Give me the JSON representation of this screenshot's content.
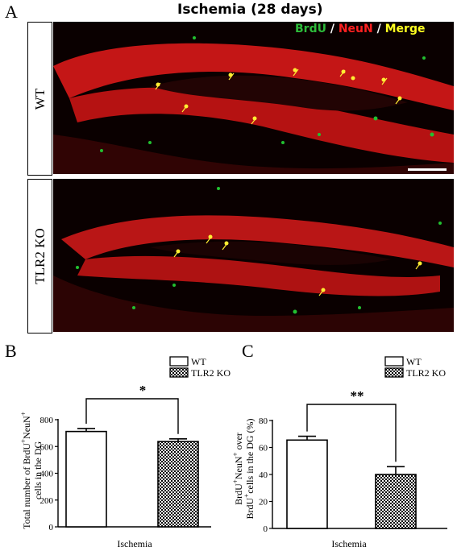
{
  "panel_a": {
    "letter": "A",
    "title": "Ischemia (28 days)",
    "legend": {
      "brdu": "BrdU",
      "sep1": "/",
      "neun": "NeuN",
      "sep2": "/",
      "merge": "Merge"
    },
    "colors": {
      "brdu": "#2dbb3a",
      "neun": "#ff2020",
      "merge": "#ffff20",
      "sep": "#ffffff"
    },
    "rows": [
      {
        "label": "WT"
      },
      {
        "label": "TLR2 KO"
      }
    ]
  },
  "legend": {
    "wt": "WT",
    "ko": "TLR2 KO"
  },
  "chart_data": [
    {
      "panel": "B",
      "type": "bar",
      "categories": [
        "WT",
        "TLR2 KO"
      ],
      "values": [
        712,
        637
      ],
      "errors": [
        22,
        20
      ],
      "ylabel_line1": "Total number of BrdU",
      "ylabel_sup1": "+",
      "ylabel_mid": "NeuN",
      "ylabel_sup2": "+",
      "ylabel_line2": "cells in the DG",
      "xlabel": "Ischemia",
      "ylim": [
        0,
        800
      ],
      "yticks": [
        "0",
        "200",
        "400",
        "600",
        "800"
      ],
      "significance": "*",
      "legend": [
        "WT",
        "TLR2 KO"
      ]
    },
    {
      "panel": "C",
      "type": "bar",
      "categories": [
        "WT",
        "TLR2 KO"
      ],
      "values": [
        65.5,
        40
      ],
      "errors": [
        2.8,
        5.8
      ],
      "ylabel_line1": "BrdU",
      "ylabel_sup1": "+",
      "ylabel_mid": "NeuN",
      "ylabel_sup2": "+",
      "ylabel_tail": "over",
      "ylabel_line2a": "BrdU",
      "ylabel_sup3": "+",
      "ylabel_line2b": "cells in the DG (%)",
      "xlabel": "Ischemia",
      "ylim": [
        0,
        80
      ],
      "yticks": [
        "0",
        "20",
        "40",
        "60",
        "80"
      ],
      "significance": "**",
      "legend": [
        "WT",
        "TLR2 KO"
      ]
    }
  ]
}
